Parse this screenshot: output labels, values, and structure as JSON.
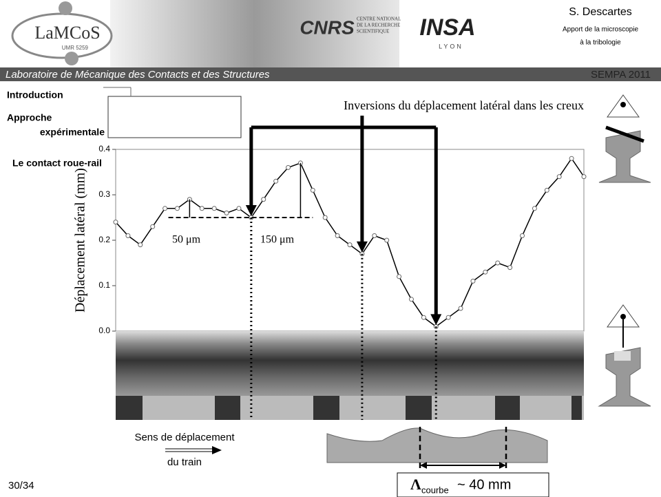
{
  "slide": {
    "header": {
      "lab_logo": "LaMCoS",
      "lab_umr": "UMR 5259",
      "cnrs": "CNRS",
      "cnrs_name": [
        "CENTRE NATIONAL",
        "DE LA RECHERCHE",
        "SCIENTIFIQUE"
      ],
      "insa": "INSA",
      "insa_city": "LYON",
      "author": "S. Descartes",
      "subtitle": [
        "Apport de la microscopie",
        "à la tribologie"
      ]
    },
    "banner": {
      "lab": "Laboratoire de Mécanique des Contacts et des Structures",
      "event": "SEMPA 2011"
    },
    "nav": [
      "Introduction",
      "Approche",
      "expérimentale",
      "Le contact roue-rail"
    ],
    "direction": [
      "Sens de déplacement",
      "du train"
    ],
    "wavelength": {
      "symbol": "Λ",
      "subscript": "courbe",
      "value": "~ 40 mm"
    },
    "page": "30/34"
  },
  "chart_data": {
    "type": "line",
    "y_label": "Déplacement latéral (mm)",
    "values": [
      0.24,
      0.21,
      0.19,
      0.23,
      0.27,
      0.27,
      0.29,
      0.27,
      0.27,
      0.26,
      0.27,
      0.25,
      0.29,
      0.33,
      0.36,
      0.37,
      0.31,
      0.25,
      0.21,
      0.19,
      0.17,
      0.21,
      0.2,
      0.12,
      0.07,
      0.03,
      0.01,
      0.03,
      0.05,
      0.11,
      0.13,
      0.15,
      0.14,
      0.21,
      0.27,
      0.31,
      0.34,
      0.38,
      0.34
    ],
    "color": "#000000",
    "ylim": [
      0,
      0.4
    ],
    "yticks": [
      {
        "value": 0,
        "label": "0.0"
      },
      0.1,
      0.2,
      0.3,
      0.4
    ],
    "annotations": [
      "Inversions du déplacement latéral dans les creux",
      "50 μm",
      "150 μm"
    ]
  }
}
